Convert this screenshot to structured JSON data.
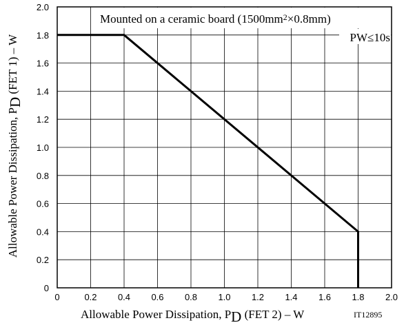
{
  "chart_data": {
    "type": "line",
    "x_label": {
      "pre": "Allowable Power Dissipation, P",
      "sub": "D",
      "post": " (FET 2)  –  W"
    },
    "y_label": {
      "pre": "Allowable Power Dissipation, P",
      "sub": "D",
      "post": " (FET 1)  –  W"
    },
    "annotations": {
      "board": {
        "pre": "Mounted on a ceramic board (1500mm",
        "sup": "2",
        "post": "×0.8mm)"
      },
      "pulse": "PW≤10s",
      "code": "IT12895"
    },
    "x": [
      0,
      0.4,
      1.8,
      1.8
    ],
    "series": [
      {
        "name": "",
        "color": "#000000",
        "values": [
          1.8,
          1.8,
          0.4,
          0
        ]
      }
    ],
    "xlim": [
      0,
      2
    ],
    "ylim": [
      0,
      2
    ],
    "xticks": [
      0,
      0.2,
      0.4,
      0.6,
      0.8,
      {
        "value": 1,
        "label": "1.0"
      },
      1.2,
      1.4,
      1.6,
      1.8,
      {
        "value": 2,
        "label": "2.0"
      }
    ],
    "yticks": [
      0,
      0.2,
      0.4,
      0.6,
      0.8,
      {
        "value": 1,
        "label": "1.0"
      },
      1.2,
      1.4,
      1.6,
      1.8,
      {
        "value": 2,
        "label": "2.0"
      }
    ],
    "grid": true
  }
}
